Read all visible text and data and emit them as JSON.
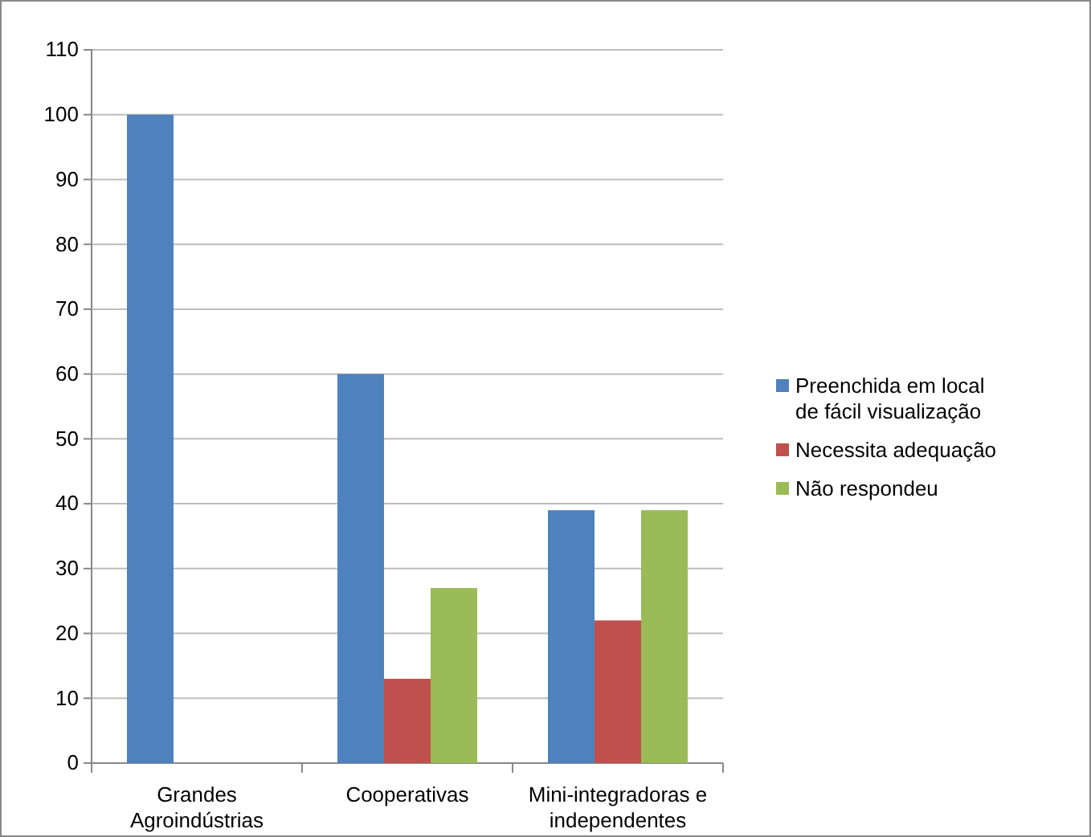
{
  "chart_data": {
    "type": "bar",
    "categories": [
      "Grandes Agroindústrias",
      "Cooperativas",
      "Mini-integradoras e independentes"
    ],
    "series": [
      {
        "name": "Preenchida em local de fácil visualização",
        "color": "#4f81bd",
        "values": [
          100,
          60,
          39
        ]
      },
      {
        "name": "Necessita adequação",
        "color": "#c0504d",
        "values": [
          0,
          13,
          22
        ]
      },
      {
        "name": "Não respondeu",
        "color": "#9bbb59",
        "values": [
          0,
          27,
          39
        ]
      }
    ],
    "ylim": [
      0,
      110
    ],
    "yticks": [
      0,
      10,
      20,
      30,
      40,
      50,
      60,
      70,
      80,
      90,
      100,
      110
    ],
    "grid": "y",
    "legend": "right"
  }
}
